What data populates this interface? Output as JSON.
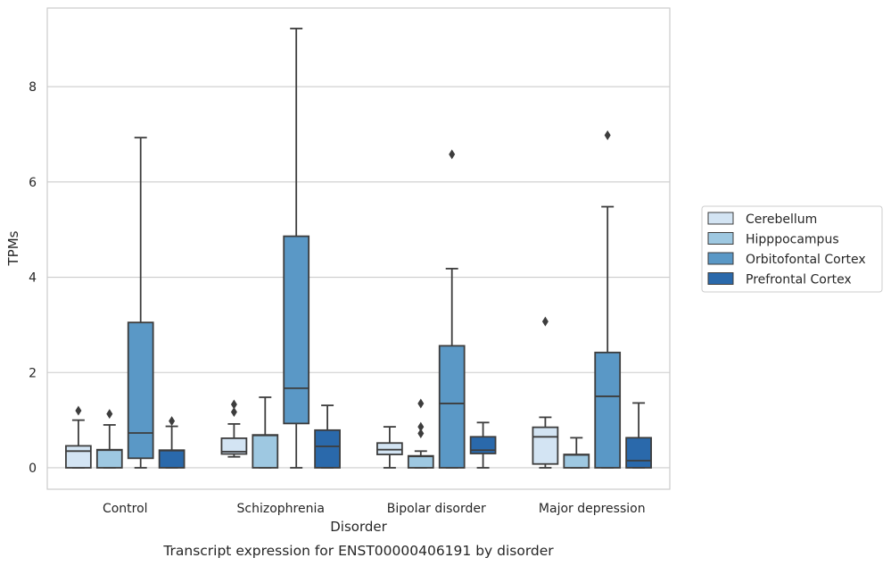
{
  "chart_data": {
    "type": "box",
    "title": "Transcript expression for ENST00000406191 by disorder",
    "xlabel": "Disorder",
    "ylabel": "TPMs",
    "categories": [
      "Control",
      "Schizophrenia",
      "Bipolar disorder",
      "Major depression"
    ],
    "ylim": [
      -0.45,
      9.65
    ],
    "yticks": [
      0,
      2,
      4,
      6,
      8
    ],
    "grid": true,
    "legend_position": "right",
    "series": [
      {
        "name": "Cerebellum",
        "color": "#d3e4f3",
        "boxes": [
          {
            "min": 0.0,
            "q1": 0.0,
            "median": 0.35,
            "q3": 0.46,
            "max": 1.0,
            "outliers": [
              1.2
            ]
          },
          {
            "min": 0.23,
            "q1": 0.29,
            "median": 0.34,
            "q3": 0.62,
            "max": 0.92,
            "outliers": [
              1.17,
              1.33
            ]
          },
          {
            "min": 0.0,
            "q1": 0.28,
            "median": 0.38,
            "q3": 0.52,
            "max": 0.86,
            "outliers": []
          },
          {
            "min": 0.0,
            "q1": 0.08,
            "median": 0.65,
            "q3": 0.85,
            "max": 1.06,
            "outliers": [
              3.07
            ]
          }
        ]
      },
      {
        "name": "Hipppocampus",
        "color": "#9ec8e1",
        "boxes": [
          {
            "min": 0.0,
            "q1": 0.0,
            "median": 0.37,
            "q3": 0.38,
            "max": 0.9,
            "outliers": [
              1.13
            ]
          },
          {
            "min": 0.0,
            "q1": 0.0,
            "median": 0.68,
            "q3": 0.69,
            "max": 1.48,
            "outliers": []
          },
          {
            "min": 0.0,
            "q1": 0.0,
            "median": 0.24,
            "q3": 0.25,
            "max": 0.35,
            "outliers": [
              0.72,
              0.86,
              1.35
            ]
          },
          {
            "min": 0.0,
            "q1": 0.0,
            "median": 0.27,
            "q3": 0.28,
            "max": 0.63,
            "outliers": []
          }
        ]
      },
      {
        "name": "Orbitofontal Cortex",
        "color": "#5a98c6",
        "boxes": [
          {
            "min": 0.0,
            "q1": 0.2,
            "median": 0.73,
            "q3": 3.05,
            "max": 6.93,
            "outliers": []
          },
          {
            "min": 0.0,
            "q1": 0.93,
            "median": 1.67,
            "q3": 4.86,
            "max": 9.22,
            "outliers": []
          },
          {
            "min": 0.0,
            "q1": 0.0,
            "median": 1.35,
            "q3": 2.56,
            "max": 4.18,
            "outliers": [
              6.58
            ]
          },
          {
            "min": 0.0,
            "q1": 0.0,
            "median": 1.5,
            "q3": 2.42,
            "max": 5.48,
            "outliers": [
              6.98
            ]
          }
        ]
      },
      {
        "name": "Prefrontal Cortex",
        "color": "#2a69ab",
        "boxes": [
          {
            "min": 0.0,
            "q1": 0.0,
            "median": 0.36,
            "q3": 0.37,
            "max": 0.87,
            "outliers": [
              0.98
            ]
          },
          {
            "min": 0.0,
            "q1": 0.0,
            "median": 0.45,
            "q3": 0.79,
            "max": 1.31,
            "outliers": []
          },
          {
            "min": 0.0,
            "q1": 0.3,
            "median": 0.37,
            "q3": 0.65,
            "max": 0.95,
            "outliers": []
          },
          {
            "min": 0.0,
            "q1": 0.0,
            "median": 0.15,
            "q3": 0.63,
            "max": 1.36,
            "outliers": []
          }
        ]
      }
    ]
  }
}
